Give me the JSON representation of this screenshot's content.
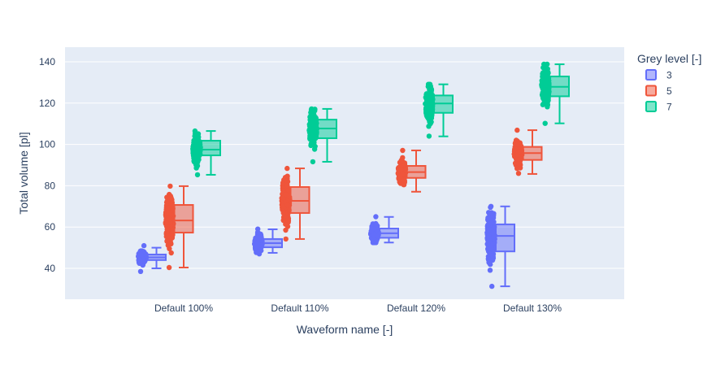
{
  "chart_data": {
    "type": "box",
    "xlabel": "Waveform name [-]",
    "ylabel": "Total volume [pl]",
    "ylim": [
      25,
      147
    ],
    "yticks": [
      40,
      60,
      80,
      100,
      120,
      140
    ],
    "grid": true,
    "categories": [
      "Default 100%",
      "Default 110%",
      "Default 120%",
      "Default 130%"
    ],
    "legend": {
      "title": "Grey level [-]",
      "placement": "right"
    },
    "series": [
      {
        "name": "3",
        "color": "#636efa",
        "boxes": [
          {
            "min": 40,
            "q1": 44,
            "median": 45.3,
            "q3": 46.7,
            "max": 50,
            "points_range": [
              38.5,
              51
            ]
          },
          {
            "min": 47.5,
            "q1": 50.2,
            "median": 52.2,
            "q3": 54.2,
            "max": 58.9,
            "points_range": [
              47,
              59
            ]
          },
          {
            "min": 52.5,
            "q1": 54.8,
            "median": 57,
            "q3": 59.3,
            "max": 64.9,
            "points_range": [
              52.5,
              65
            ]
          },
          {
            "min": 31.3,
            "q1": 48.2,
            "median": 55.7,
            "q3": 61.3,
            "max": 70,
            "points_range": [
              31.3,
              70
            ]
          }
        ]
      },
      {
        "name": "5",
        "color": "#EF553B",
        "boxes": [
          {
            "min": 40.4,
            "q1": 57.3,
            "median": 63.2,
            "q3": 70.7,
            "max": 79.8,
            "points_range": [
              40.4,
              79.8
            ]
          },
          {
            "min": 54.2,
            "q1": 66.8,
            "median": 72.7,
            "q3": 79.4,
            "max": 88.4,
            "points_range": [
              54.2,
              88.4
            ]
          },
          {
            "min": 77.1,
            "q1": 83.8,
            "median": 86.6,
            "q3": 89.6,
            "max": 97.1,
            "points_range": [
              80.5,
              97.1
            ]
          },
          {
            "min": 85.7,
            "q1": 92.5,
            "median": 95.8,
            "q3": 98.8,
            "max": 106.9,
            "points_range": [
              86,
              106.9
            ]
          }
        ]
      },
      {
        "name": "7",
        "color": "#00cc96",
        "boxes": [
          {
            "min": 85.3,
            "q1": 94.7,
            "median": 97.5,
            "q3": 101.8,
            "max": 106.5,
            "points_range": [
              85.3,
              106.5
            ]
          },
          {
            "min": 91.6,
            "q1": 103,
            "median": 107.7,
            "q3": 112,
            "max": 117.2,
            "points_range": [
              91.6,
              117.2
            ]
          },
          {
            "min": 103.9,
            "q1": 115.3,
            "median": 119.8,
            "q3": 123.7,
            "max": 129.1,
            "points_range": [
              104,
              129.1
            ]
          },
          {
            "min": 110.2,
            "q1": 123.3,
            "median": 127.9,
            "q3": 132.9,
            "max": 138.8,
            "points_range": [
              110.2,
              138.8
            ]
          }
        ]
      }
    ]
  }
}
